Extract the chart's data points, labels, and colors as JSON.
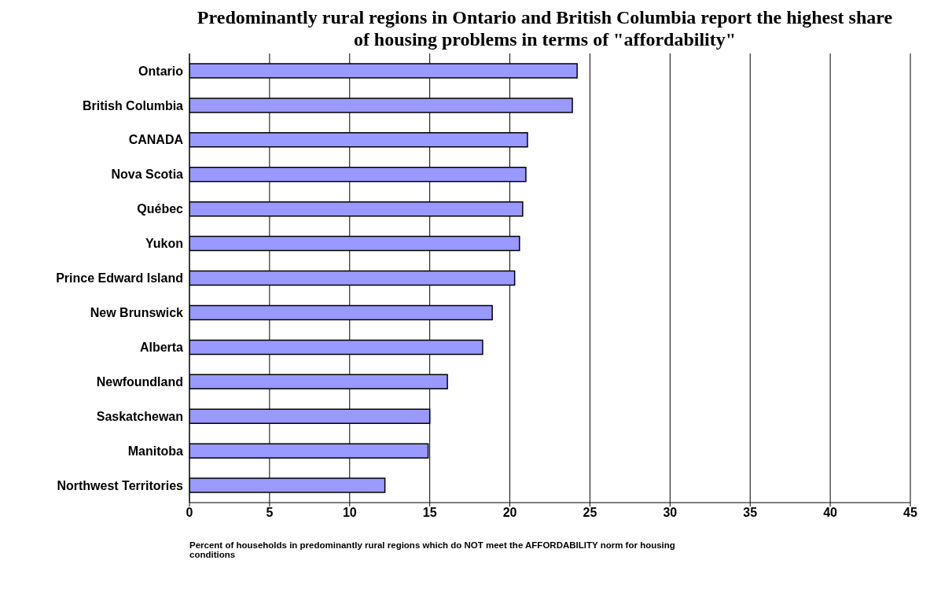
{
  "chart_data": {
    "type": "bar",
    "orientation": "horizontal",
    "title": "Predominantly rural regions in Ontario and British Columbia report the highest share of housing problems in terms of \"affordability\"",
    "xlabel": "Percent of households in predominantly rural regions which do NOT meet the AFFORDABILITY norm for housing conditions",
    "categories": [
      "Ontario",
      "British Columbia",
      "CANADA",
      "Nova Scotia",
      "Québec",
      "Yukon",
      "Prince Edward Island",
      "New Brunswick",
      "Alberta",
      "Newfoundland",
      "Saskatchewan",
      "Manitoba",
      "Northwest Territories"
    ],
    "values": [
      24.2,
      23.9,
      21.1,
      21.0,
      20.8,
      20.6,
      20.3,
      18.9,
      18.3,
      16.1,
      15.0,
      14.9,
      12.2
    ],
    "color": "#9999ff",
    "xlim": [
      0,
      45
    ],
    "xticks": [
      0,
      5,
      10,
      15,
      20,
      25,
      30,
      35,
      40,
      45
    ],
    "grid": "x"
  }
}
